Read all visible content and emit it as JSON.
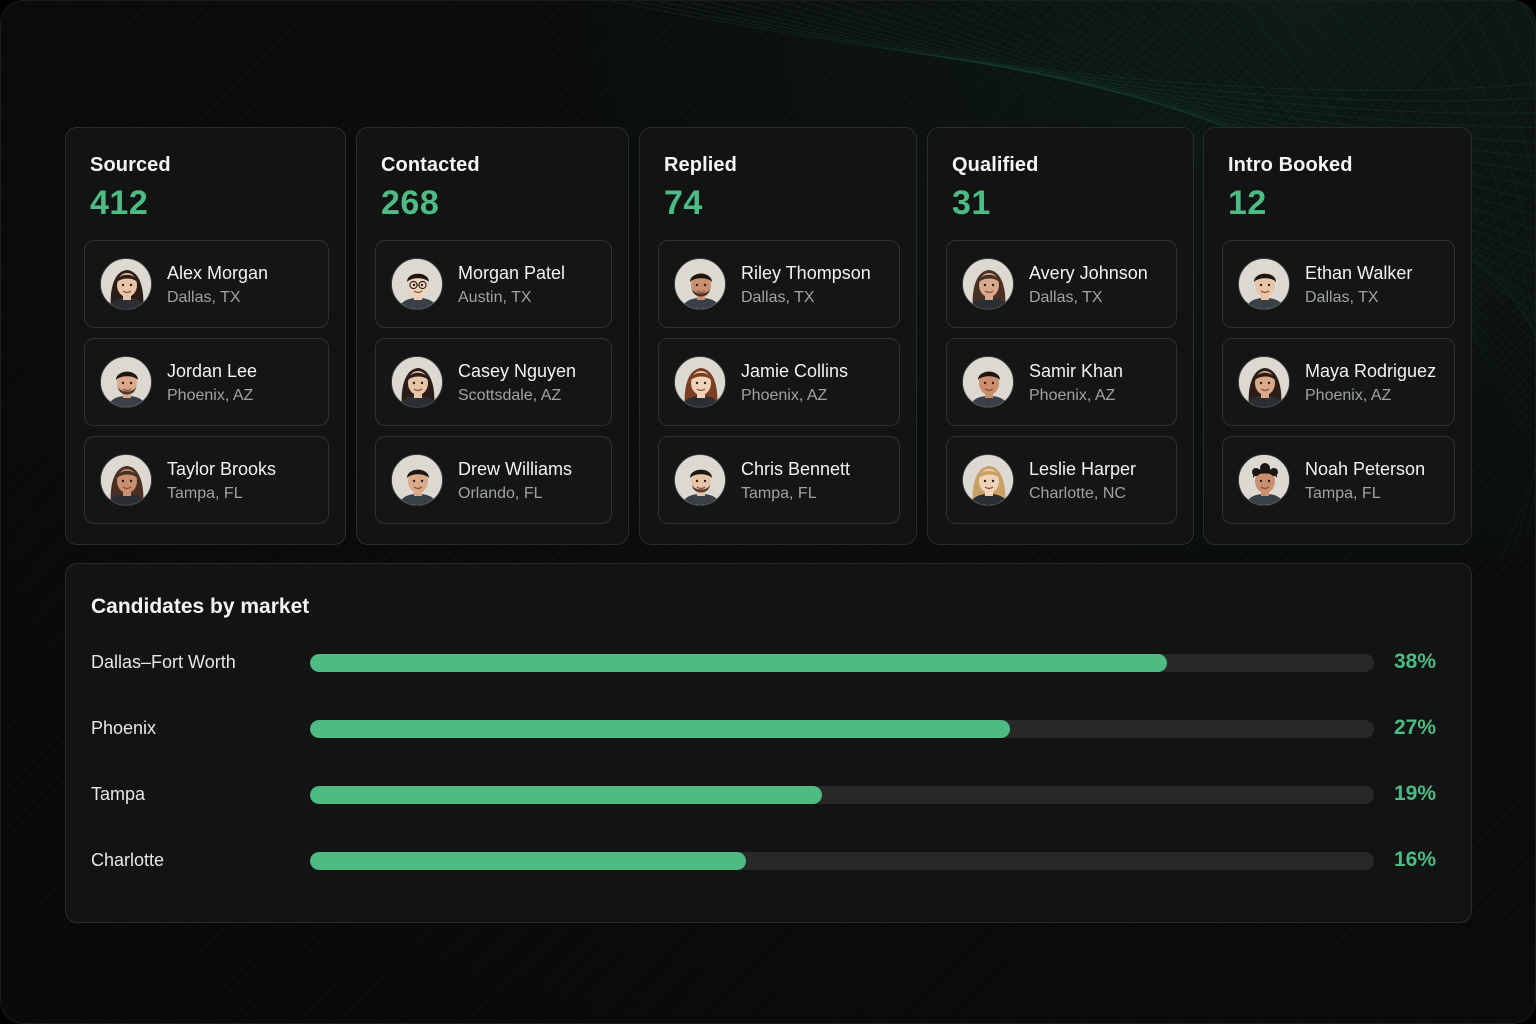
{
  "pipeline": {
    "columns": [
      {
        "title": "Sourced",
        "count": "412",
        "candidates": [
          {
            "name": "Alex Morgan",
            "location": "Dallas, TX",
            "avatar": "woman-dark-hair-portrait"
          },
          {
            "name": "Jordan Lee",
            "location": "Phoenix, AZ",
            "avatar": "man-beard-portrait"
          },
          {
            "name": "Taylor Brooks",
            "location": "Tampa, FL",
            "avatar": "woman-brown-hair-portrait"
          }
        ]
      },
      {
        "title": "Contacted",
        "count": "268",
        "candidates": [
          {
            "name": "Morgan Patel",
            "location": "Austin, TX",
            "avatar": "man-glasses-portrait"
          },
          {
            "name": "Casey Nguyen",
            "location": "Scottsdale, AZ",
            "avatar": "woman-dark-hair-portrait"
          },
          {
            "name": "Drew Williams",
            "location": "Orlando, FL",
            "avatar": "man-portrait"
          }
        ]
      },
      {
        "title": "Replied",
        "count": "74",
        "candidates": [
          {
            "name": "Riley Thompson",
            "location": "Dallas, TX",
            "avatar": "man-beard-portrait"
          },
          {
            "name": "Jamie Collins",
            "location": "Phoenix, AZ",
            "avatar": "woman-auburn-hair-portrait"
          },
          {
            "name": "Chris Bennett",
            "location": "Tampa, FL",
            "avatar": "man-beard-portrait"
          }
        ]
      },
      {
        "title": "Qualified",
        "count": "31",
        "candidates": [
          {
            "name": "Avery Johnson",
            "location": "Dallas, TX",
            "avatar": "woman-brown-hair-portrait"
          },
          {
            "name": "Samir Khan",
            "location": "Phoenix, AZ",
            "avatar": "man-portrait"
          },
          {
            "name": "Leslie Harper",
            "location": "Charlotte, NC",
            "avatar": "woman-blonde-hair-portrait"
          }
        ]
      },
      {
        "title": "Intro Booked",
        "count": "12",
        "candidates": [
          {
            "name": "Ethan Walker",
            "location": "Dallas, TX",
            "avatar": "man-portrait"
          },
          {
            "name": "Maya Rodriguez",
            "location": "Phoenix, AZ",
            "avatar": "woman-dark-hair-portrait"
          },
          {
            "name": "Noah Peterson",
            "location": "Tampa, FL",
            "avatar": "man-curly-hair-portrait"
          }
        ]
      }
    ]
  },
  "market": {
    "title": "Candidates by market",
    "rows": [
      {
        "label": "Dallas–Fort Worth",
        "percent_label": "38%",
        "fill_fraction": 0.805
      },
      {
        "label": "Phoenix",
        "percent_label": "27%",
        "fill_fraction": 0.658
      },
      {
        "label": "Tampa",
        "percent_label": "19%",
        "fill_fraction": 0.481
      },
      {
        "label": "Charlotte",
        "percent_label": "16%",
        "fill_fraction": 0.41
      }
    ]
  },
  "colors": {
    "accent": "#4dbb83",
    "panel": "#121313",
    "track": "#272928",
    "background": "#0a0b0b"
  }
}
